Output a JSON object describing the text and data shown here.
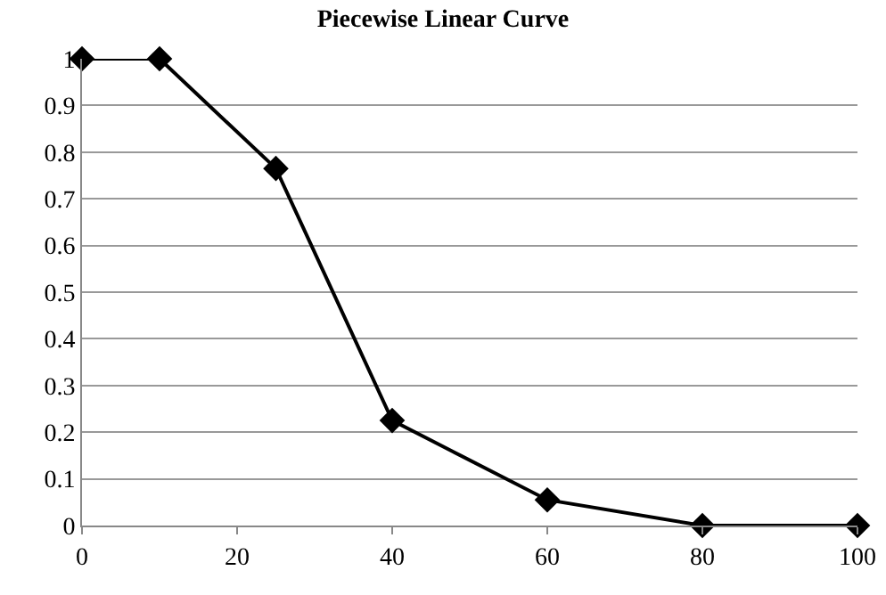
{
  "chart_data": {
    "type": "line",
    "title": "Piecewise Linear Curve",
    "x": [
      0,
      10,
      25,
      40,
      60,
      80,
      100
    ],
    "series": [
      {
        "color": "#000000",
        "values": [
          1,
          1,
          0.765,
          0.225,
          0.055,
          0,
          0
        ]
      }
    ],
    "xlim": [
      0,
      100
    ],
    "xticks": [
      0,
      20,
      40,
      60,
      80,
      100
    ],
    "ylim": [
      0,
      1
    ],
    "yticks": [
      0,
      0.1,
      0.2,
      0.3,
      0.4,
      0.5,
      0.6,
      0.7,
      0.8,
      0.9,
      1
    ],
    "grid": "y",
    "legend": false,
    "marker": "diamond",
    "line_style": "solid"
  }
}
